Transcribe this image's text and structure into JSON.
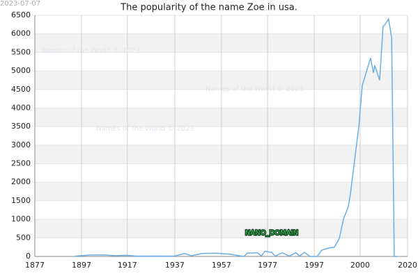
{
  "chart_data": {
    "type": "line",
    "title": "The popularity of the name Zoe in usa.",
    "date_stamp": "2023-07-07",
    "watermarks": [
      "Names of the World © 2023",
      "Names of the World © 2023",
      "Names of the World © 2023"
    ],
    "annotation": "NANO_DOMAIN",
    "x": [
      1892.5,
      1898.4,
      1903.7,
      1907.7,
      1912.5,
      1915.8,
      1930.5,
      1934.5,
      1937.1,
      1941.1,
      1946.5,
      1951.8,
      1957.2,
      1958.5,
      1962.5,
      1963.9,
      1965.2,
      1967.9,
      1969.2,
      1971.9,
      1974.6,
      1977.2,
      1978.6,
      1980.4,
      1982.6,
      1985.3,
      1987.1,
      1989.3,
      1991.9,
      1993.8,
      1995.4,
      1997.3,
      1998.1,
      2001.3,
      2002.6,
      2005.8,
      2006.9,
      2007.4,
      2009.3,
      2010.6,
      2011.4,
      2012.7,
      2013.9,
      2014.9,
      2016.0
    ],
    "series": [
      {
        "name": "Zoe",
        "color": "#6aaee8",
        "values": [
          10,
          40,
          40,
          20,
          30,
          10,
          10,
          80,
          20,
          80,
          90,
          60,
          0,
          90,
          100,
          10,
          140,
          110,
          10,
          100,
          10,
          100,
          10,
          110,
          0,
          0,
          170,
          220,
          250,
          480,
          1000,
          1350,
          1700,
          3500,
          4600,
          5350,
          4950,
          5150,
          4750,
          6200,
          6250,
          6400,
          5900,
          0,
          0
        ]
      }
    ],
    "xlim": [
      1877,
      2020
    ],
    "xticks": [
      1877,
      {
        "value": 1894.9,
        "label": "1897"
      },
      {
        "value": 1912.5,
        "label": "1917"
      },
      {
        "value": 1930.7,
        "label": "1937"
      },
      {
        "value": 1948.6,
        "label": "1957"
      },
      {
        "value": 1966.3,
        "label": "1977"
      },
      {
        "value": 1984.2,
        "label": "1997"
      },
      {
        "value": 2001.8,
        "label": "2000"
      },
      2020
    ],
    "ylim": [
      0,
      6500
    ],
    "yticks": [
      0,
      500,
      1000,
      1500,
      2000,
      2500,
      3000,
      3500,
      4000,
      4500,
      5000,
      5500,
      6000,
      6500
    ],
    "grid": true,
    "band_color": "#f2f2f2"
  }
}
